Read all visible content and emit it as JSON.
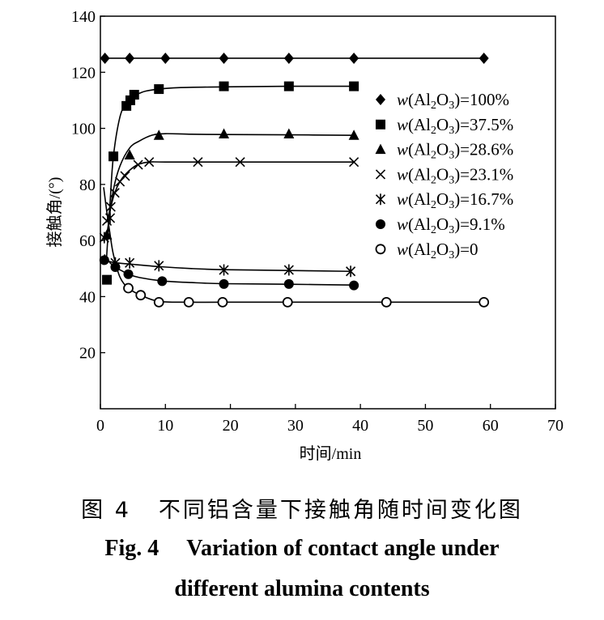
{
  "chart_data": {
    "type": "scatter",
    "xlabel": "时间/min",
    "ylabel": "接触角/(°)",
    "xlim": [
      0,
      70
    ],
    "ylim": [
      0,
      140
    ],
    "xticks": [
      "0",
      "10",
      "20",
      "30",
      "40",
      "50",
      "60",
      "70"
    ],
    "yticks": [
      "20",
      "40",
      "60",
      "80",
      "100",
      "120",
      "140"
    ],
    "grid": false,
    "legend_position": "right",
    "series": [
      {
        "name": "w(Al2O3)=100%",
        "marker": "diamond",
        "x": [
          0.7,
          4.5,
          10,
          19,
          29,
          39,
          59
        ],
        "y": [
          125,
          125,
          125,
          125,
          125,
          125,
          125
        ]
      },
      {
        "name": "w(Al2O3)=37.5%",
        "marker": "square",
        "x": [
          1,
          2,
          4,
          4.6,
          5.2,
          9,
          19,
          29,
          39
        ],
        "y": [
          46,
          90,
          108,
          110,
          112,
          114,
          115,
          115,
          115
        ]
      },
      {
        "name": "w(Al2O3)=28.6%",
        "marker": "triangle",
        "x": [
          1,
          4.5,
          9,
          19,
          29,
          39
        ],
        "y": [
          62,
          90.5,
          97.5,
          98,
          98,
          97.5
        ]
      },
      {
        "name": "w(Al2O3)=23.1%",
        "marker": "cross",
        "x": [
          1,
          1.6,
          2.2,
          3,
          3.8,
          5.8,
          7.5,
          15,
          21.5,
          39
        ],
        "y": [
          67,
          72,
          77,
          81,
          83,
          87,
          88,
          88,
          88,
          88
        ]
      },
      {
        "name": "w(Al2O3)=16.7%",
        "marker": "star",
        "x": [
          0.6,
          1.5,
          2.3,
          4.5,
          9,
          19,
          29,
          38.5
        ],
        "y": [
          61,
          68,
          52,
          52,
          51,
          49.5,
          49.5,
          49
        ]
      },
      {
        "name": "w(Al2O3)=9.1%",
        "marker": "circle-filled",
        "x": [
          0.6,
          2.3,
          4.3,
          9.5,
          19,
          29,
          39
        ],
        "y": [
          53,
          50.5,
          48,
          45.5,
          44.5,
          44.5,
          44
        ]
      },
      {
        "name": "w(Al2O3)=0",
        "marker": "circle-open",
        "x": [
          4.3,
          6.2,
          9,
          13.6,
          18.8,
          28.8,
          44,
          59
        ],
        "y": [
          43,
          40.5,
          38,
          38,
          38,
          38,
          38,
          38
        ]
      }
    ],
    "fit_curves": [
      {
        "x": [
          0.7,
          59
        ],
        "y": [
          125,
          125
        ]
      },
      {
        "x": [
          0.9,
          1.5,
          2,
          3,
          4,
          5,
          6,
          7,
          9,
          12,
          19,
          29,
          39
        ],
        "y": [
          52,
          74,
          90,
          104,
          109,
          111.5,
          112.5,
          113.3,
          114,
          114.5,
          114.8,
          115,
          115
        ]
      },
      {
        "x": [
          1,
          2,
          3,
          4.5,
          6,
          8,
          10,
          14,
          19,
          29,
          39
        ],
        "y": [
          62,
          78,
          86.5,
          93,
          95.5,
          97.6,
          98.1,
          97.9,
          97.8,
          97.7,
          97.5
        ]
      },
      {
        "x": [
          1,
          1.6,
          2.2,
          3,
          3.8,
          5,
          6,
          7.5,
          10,
          20,
          39
        ],
        "y": [
          67,
          72,
          77,
          81,
          83.5,
          86,
          87.3,
          88,
          88,
          88,
          88
        ]
      },
      {
        "x": [
          0.6,
          1,
          2,
          3,
          4.5,
          9,
          14,
          19,
          29,
          38.5
        ],
        "y": [
          53,
          52.7,
          52.2,
          51.9,
          51.6,
          50.7,
          50,
          49.6,
          49.3,
          49
        ]
      },
      {
        "x": [
          0.6,
          1.5,
          2.3,
          3.3,
          4.3,
          6,
          9.5,
          14,
          19,
          29,
          39
        ],
        "y": [
          55,
          52,
          50.5,
          49.2,
          48,
          46.8,
          45.6,
          45,
          44.6,
          44.4,
          44.1
        ]
      },
      {
        "x": [
          0.5,
          1,
          1.5,
          2,
          3,
          4.3,
          6.2,
          9,
          13.6,
          20,
          40,
          59
        ],
        "y": [
          79,
          70,
          62,
          55,
          47,
          43,
          40.5,
          38.3,
          38,
          38,
          38,
          38
        ]
      }
    ]
  },
  "legend_labels": [
    {
      "pre": "w",
      "mid": "(Al",
      "sub1": "2",
      "o": "O",
      "sub2": "3",
      "post": ")=100%"
    },
    {
      "pre": "w",
      "mid": "(Al",
      "sub1": "2",
      "o": "O",
      "sub2": "3",
      "post": ")=37.5%"
    },
    {
      "pre": "w",
      "mid": "(Al",
      "sub1": "2",
      "o": "O",
      "sub2": "3",
      "post": ")=28.6%"
    },
    {
      "pre": "w",
      "mid": "(Al",
      "sub1": "2",
      "o": "O",
      "sub2": "3",
      "post": ")=23.1%"
    },
    {
      "pre": "w",
      "mid": "(Al",
      "sub1": "2",
      "o": "O",
      "sub2": "3",
      "post": ")=16.7%"
    },
    {
      "pre": "w",
      "mid": "(Al",
      "sub1": "2",
      "o": "O",
      "sub2": "3",
      "post": ")=9.1%"
    },
    {
      "pre": "w",
      "mid": "(Al",
      "sub1": "2",
      "o": "O",
      "sub2": "3",
      "post": ")=0"
    }
  ],
  "caption": {
    "cn_num": "图 4",
    "cn_text": "不同铝含量下接触角随时间变化图",
    "en_num": "Fig. 4",
    "en_line1": "Variation of contact angle under",
    "en_line2": "different alumina contents"
  }
}
